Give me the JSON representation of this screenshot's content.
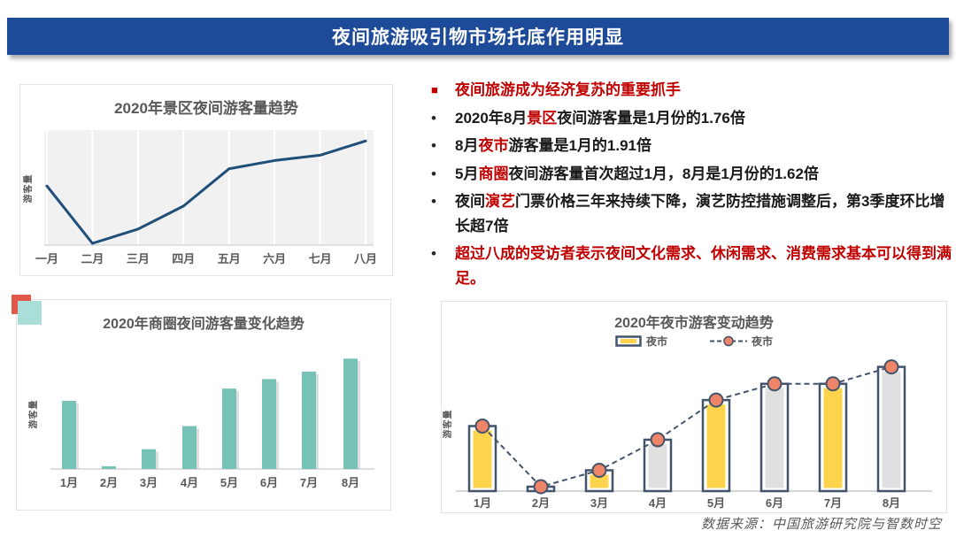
{
  "title_bar": {
    "text": "夜间旅游吸引物市场托底作用明显",
    "bg_color": "#1D4B99",
    "text_color": "#FFFFFF"
  },
  "icons": {
    "square_bullet": "■",
    "dot_bullet": "•"
  },
  "bullets": {
    "accent_color": "#C00000",
    "heading": {
      "text": "夜间旅游成为经济复苏的重要抓手"
    },
    "items": [
      {
        "segments": [
          {
            "t": "2020年8月"
          },
          {
            "t": "景区",
            "red": true
          },
          {
            "t": "夜间游客量是1月份的1.76倍"
          }
        ]
      },
      {
        "segments": [
          {
            "t": "8月"
          },
          {
            "t": "夜市",
            "red": true
          },
          {
            "t": "游客量是1月的1.91倍"
          }
        ]
      },
      {
        "segments": [
          {
            "t": "5月"
          },
          {
            "t": "商圈",
            "red": true
          },
          {
            "t": "夜间游客量首次超过1月，8月是1月份的1.62倍"
          }
        ]
      },
      {
        "segments": [
          {
            "t": "夜间"
          },
          {
            "t": "演艺",
            "red": true
          },
          {
            "t": "门票价格三年来持续下降，演艺防控措施调整后，第3季度环比增长超7倍"
          }
        ]
      },
      {
        "segments": [
          {
            "t": "超过八成的受访者表示夜间文化需求、休闲需求、消费需求基本可以得到满足。",
            "red": true
          }
        ]
      }
    ]
  },
  "chart_data": [
    {
      "type": "line",
      "title": "2020年景区夜间游客量趋势",
      "ylabel": "游客量",
      "categories": [
        "一月",
        "二月",
        "三月",
        "四月",
        "五月",
        "六月",
        "七月",
        "八月"
      ],
      "values": [
        1.0,
        0.03,
        0.27,
        0.66,
        1.29,
        1.43,
        1.52,
        1.76
      ],
      "ylim": [
        0,
        1.9
      ],
      "line_color": "#1F4E79",
      "plot_bg": "#F1F1F1",
      "grid": "vertical-white",
      "legend_position": "none",
      "note": "values indexed to January = 1; August = 1.76x January"
    },
    {
      "type": "bar",
      "title": "2020年商圈夜间游客量变化趋势",
      "ylabel": "游客量",
      "categories": [
        "1月",
        "2月",
        "3月",
        "4月",
        "5月",
        "6月",
        "7月",
        "8月"
      ],
      "values": [
        1.0,
        0.04,
        0.29,
        0.63,
        1.18,
        1.32,
        1.43,
        1.62
      ],
      "ylim": [
        0,
        1.75
      ],
      "bar_color": "#77C2B6",
      "grid": "off",
      "legend_position": "none",
      "note": "values indexed to January = 1; August = 1.62x January"
    },
    {
      "type": "bar+line",
      "title": "2020年夜市游客变动趋势",
      "ylabel": "游客量",
      "categories": [
        "1月",
        "2月",
        "3月",
        "4月",
        "5月",
        "6月",
        "7月",
        "8月"
      ],
      "series": [
        {
          "name": "夜市",
          "type": "bar",
          "values": [
            1.0,
            0.05,
            0.32,
            0.79,
            1.4,
            1.65,
            1.65,
            1.91
          ],
          "fills": [
            "#FFD44D",
            "none",
            "#FFD44D",
            "#E0E0E0",
            "#FFD44D",
            "#E0E0E0",
            "#FFD44D",
            "#E0E0E0"
          ]
        },
        {
          "name": "夜市",
          "type": "line",
          "values": [
            1.0,
            0.05,
            0.32,
            0.79,
            1.4,
            1.65,
            1.65,
            1.91
          ],
          "line_color": "#44546A",
          "marker_color": "#EE8468"
        }
      ],
      "outline_color": "#44546A",
      "ylim": [
        0,
        2.1
      ],
      "grid": "off",
      "legend_position": "top",
      "note": "values indexed to January = 1; August = 1.91x January"
    }
  ],
  "source": "数据来源：中国旅游研究院与智数时空"
}
